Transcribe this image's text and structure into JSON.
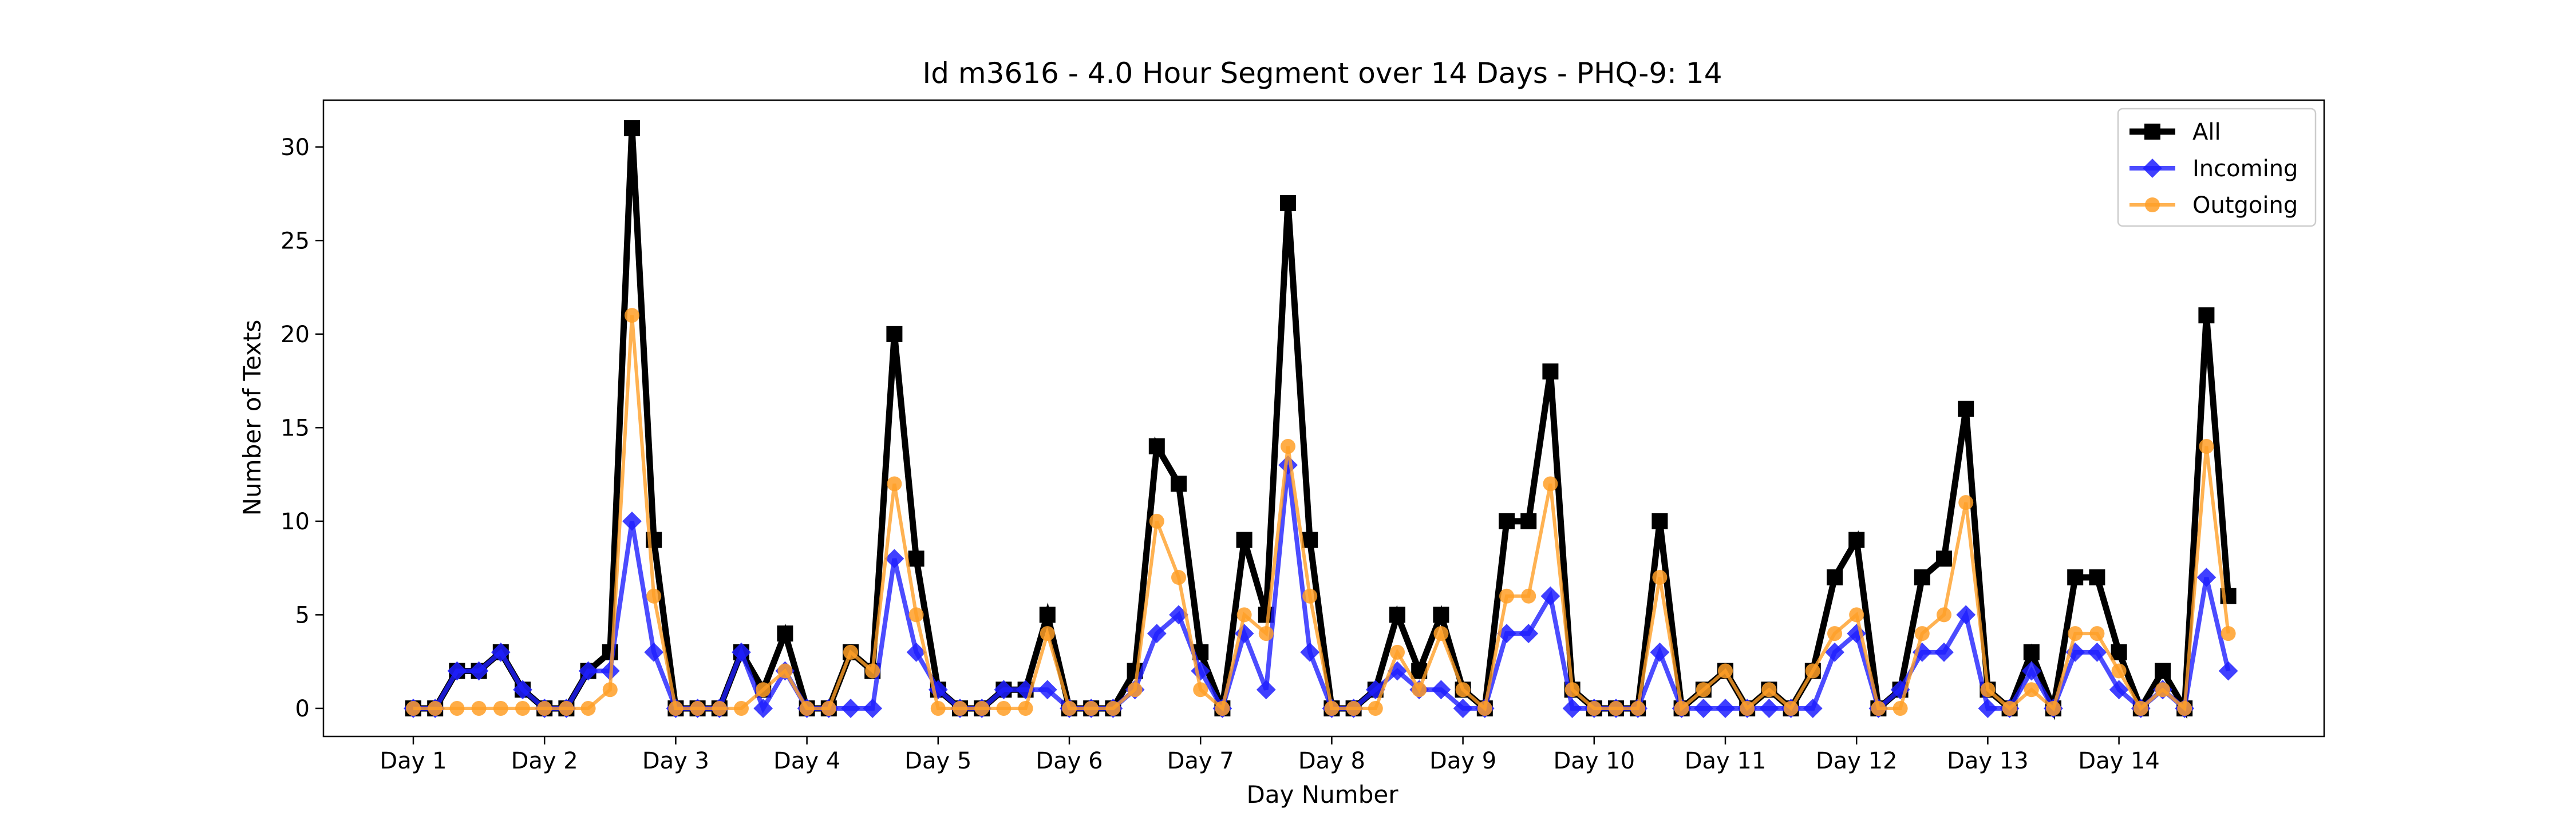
{
  "chart_data": {
    "type": "line",
    "title": "Id m3616 - 4.0 Hour Segment over 14 Days - PHQ-9: 14",
    "xlabel": "Day Number",
    "ylabel": "Number of Texts",
    "xtick_labels": [
      "Day 1",
      "Day 2",
      "Day 3",
      "Day 4",
      "Day 5",
      "Day 6",
      "Day 7",
      "Day 8",
      "Day 9",
      "Day 10",
      "Day 11",
      "Day 12",
      "Day 13",
      "Day 14"
    ],
    "yticks": [
      0,
      5,
      10,
      15,
      20,
      25,
      30
    ],
    "ylim": [
      -1.5,
      32.5
    ],
    "points_per_day": 6,
    "legend_position": "top-right",
    "series": [
      {
        "name": "All",
        "color": "#000000",
        "marker": "square",
        "values": [
          0,
          0,
          2,
          2,
          3,
          1,
          0,
          0,
          2,
          3,
          31,
          9,
          0,
          0,
          0,
          3,
          1,
          4,
          0,
          0,
          3,
          2,
          20,
          8,
          1,
          0,
          0,
          1,
          1,
          5,
          0,
          0,
          0,
          2,
          14,
          12,
          3,
          0,
          9,
          5,
          27,
          9,
          0,
          0,
          1,
          5,
          2,
          5,
          1,
          0,
          10,
          10,
          18,
          1,
          0,
          0,
          0,
          10,
          0,
          1,
          2,
          0,
          1,
          0,
          2,
          7,
          9,
          0,
          1,
          7,
          8,
          16,
          1,
          0,
          3,
          0,
          7,
          7,
          3,
          0,
          2,
          0,
          21,
          6
        ]
      },
      {
        "name": "Incoming",
        "color": "#1f1fff",
        "marker": "diamond",
        "values": [
          0,
          0,
          2,
          2,
          3,
          1,
          0,
          0,
          2,
          2,
          10,
          3,
          0,
          0,
          0,
          3,
          0,
          2,
          0,
          0,
          0,
          0,
          8,
          3,
          1,
          0,
          0,
          1,
          1,
          1,
          0,
          0,
          0,
          1,
          4,
          5,
          2,
          0,
          4,
          1,
          13,
          3,
          0,
          0,
          1,
          2,
          1,
          1,
          0,
          0,
          4,
          4,
          6,
          0,
          0,
          0,
          0,
          3,
          0,
          0,
          0,
          0,
          0,
          0,
          0,
          3,
          4,
          0,
          1,
          3,
          3,
          5,
          0,
          0,
          2,
          0,
          3,
          3,
          1,
          0,
          1,
          0,
          7,
          2
        ]
      },
      {
        "name": "Outgoing",
        "color": "#ff9f27",
        "marker": "circle",
        "values": [
          0,
          0,
          0,
          0,
          0,
          0,
          0,
          0,
          0,
          1,
          21,
          6,
          0,
          0,
          0,
          0,
          1,
          2,
          0,
          0,
          3,
          2,
          12,
          5,
          0,
          0,
          0,
          0,
          0,
          4,
          0,
          0,
          0,
          1,
          10,
          7,
          1,
          0,
          5,
          4,
          14,
          6,
          0,
          0,
          0,
          3,
          1,
          4,
          1,
          0,
          6,
          6,
          12,
          1,
          0,
          0,
          0,
          7,
          0,
          1,
          2,
          0,
          1,
          0,
          2,
          4,
          5,
          0,
          0,
          4,
          5,
          11,
          1,
          0,
          1,
          0,
          4,
          4,
          2,
          0,
          1,
          0,
          14,
          4
        ]
      }
    ]
  }
}
